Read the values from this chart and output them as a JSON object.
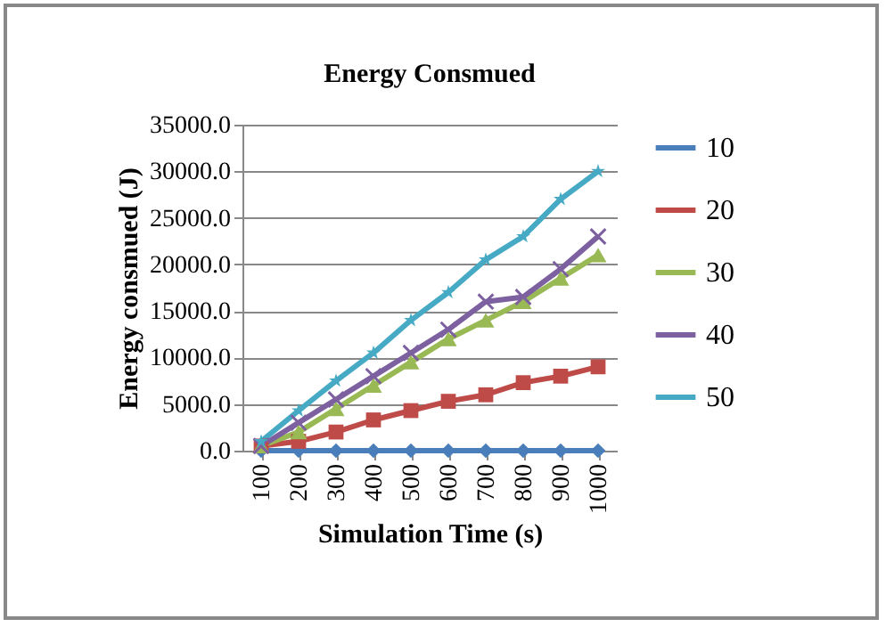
{
  "chart_data": {
    "type": "line",
    "title": "Energy Consmued",
    "xlabel": "Simulation Time (s)",
    "ylabel": "Energy consmued (J)",
    "categories": [
      "100",
      "200",
      "300",
      "400",
      "500",
      "600",
      "700",
      "800",
      "900",
      "1000"
    ],
    "series": [
      {
        "name": "10",
        "color": "#4a7ebb",
        "marker": "diamond",
        "values": [
          0,
          0,
          0,
          0,
          0,
          0,
          0,
          0,
          0,
          0
        ]
      },
      {
        "name": "20",
        "color": "#be4b48",
        "marker": "square",
        "values": [
          500,
          1000,
          2000,
          3300,
          4300,
          5300,
          6000,
          7300,
          8000,
          9000
        ]
      },
      {
        "name": "30",
        "color": "#98b954",
        "marker": "triangle",
        "values": [
          500,
          2000,
          4500,
          7000,
          9500,
          12000,
          14000,
          16000,
          18500,
          21000
        ]
      },
      {
        "name": "40",
        "color": "#7d60a0",
        "marker": "cross",
        "values": [
          500,
          3000,
          5500,
          8000,
          10500,
          13000,
          16000,
          16500,
          19500,
          23000
        ]
      },
      {
        "name": "50",
        "color": "#46aac5",
        "marker": "star",
        "values": [
          1000,
          4300,
          7500,
          10500,
          14000,
          17000,
          20500,
          23000,
          27000,
          30000
        ]
      }
    ],
    "ylim": [
      0,
      35000
    ],
    "yticks": [
      {
        "value": 0,
        "label": "0.0"
      },
      {
        "value": 5000,
        "label": "5000.0"
      },
      {
        "value": 10000,
        "label": "10000.0"
      },
      {
        "value": 15000,
        "label": "15000.0"
      },
      {
        "value": 20000,
        "label": "20000.0"
      },
      {
        "value": 25000,
        "label": "25000.0"
      },
      {
        "value": 30000,
        "label": "30000.0"
      },
      {
        "value": 35000,
        "label": "35000.0"
      }
    ],
    "grid": "y",
    "legend": "right",
    "line_style": "solid"
  }
}
